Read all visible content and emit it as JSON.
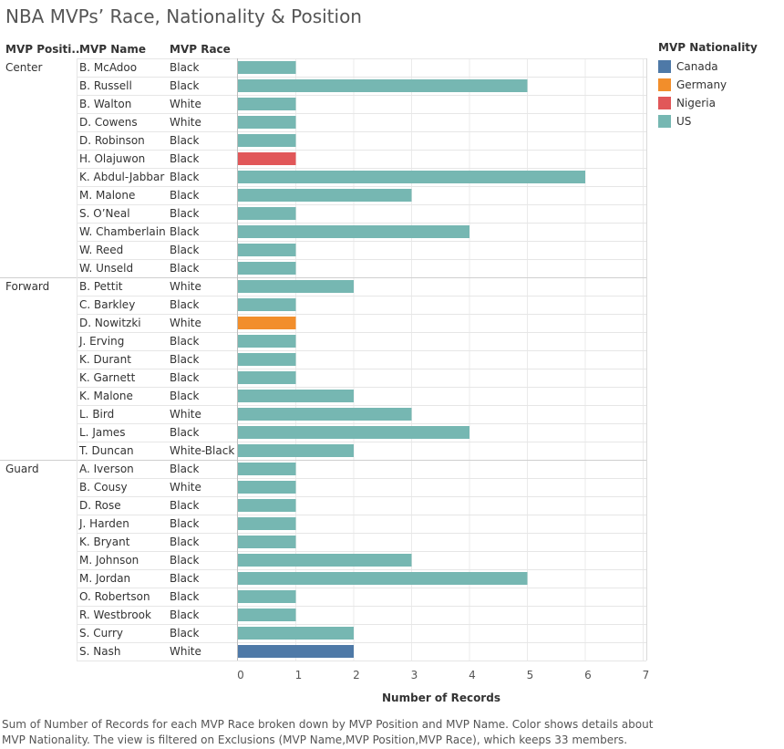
{
  "title": "NBA MVPs’ Race, Nationality & Position",
  "headers": {
    "position": "MVP Positi..",
    "name": "MVP Name",
    "race": "MVP Race"
  },
  "legend": {
    "title": "MVP Nationality",
    "items": [
      {
        "label": "Canada",
        "color": "#4e79a7"
      },
      {
        "label": "Germany",
        "color": "#f28e2b"
      },
      {
        "label": "Nigeria",
        "color": "#e15759"
      },
      {
        "label": "US",
        "color": "#76b7b2"
      }
    ]
  },
  "caption": "Sum of Number of Records for each MVP Race broken down by MVP Position and MVP Name.  Color shows details about MVP Nationality. The view is filtered on Exclusions (MVP Name,MVP Position,MVP Race), which keeps 33 members.",
  "chart_data": {
    "type": "bar",
    "orientation": "horizontal",
    "xlabel": "Number of Records",
    "xlim": [
      0,
      7
    ],
    "xticks": [
      "0",
      "1",
      "2",
      "3",
      "4",
      "5",
      "6",
      "7"
    ],
    "grid": true,
    "legend_placement": "right",
    "groups": [
      {
        "position": "Center",
        "rows": [
          {
            "name": "B. McAdoo",
            "race": "Black",
            "value": 1,
            "nationality": "US"
          },
          {
            "name": "B. Russell",
            "race": "Black",
            "value": 5,
            "nationality": "US"
          },
          {
            "name": "B. Walton",
            "race": "White",
            "value": 1,
            "nationality": "US"
          },
          {
            "name": "D. Cowens",
            "race": "White",
            "value": 1,
            "nationality": "US"
          },
          {
            "name": "D. Robinson",
            "race": "Black",
            "value": 1,
            "nationality": "US"
          },
          {
            "name": "H. Olajuwon",
            "race": "Black",
            "value": 1,
            "nationality": "Nigeria"
          },
          {
            "name": "K. Abdul-Jabbar",
            "race": "Black",
            "value": 6,
            "nationality": "US"
          },
          {
            "name": "M. Malone",
            "race": "Black",
            "value": 3,
            "nationality": "US"
          },
          {
            "name": "S. O’Neal",
            "race": "Black",
            "value": 1,
            "nationality": "US"
          },
          {
            "name": "W. Chamberlain",
            "race": "Black",
            "value": 4,
            "nationality": "US"
          },
          {
            "name": "W. Reed",
            "race": "Black",
            "value": 1,
            "nationality": "US"
          },
          {
            "name": "W. Unseld",
            "race": "Black",
            "value": 1,
            "nationality": "US"
          }
        ]
      },
      {
        "position": "Forward",
        "rows": [
          {
            "name": "B. Pettit",
            "race": "White",
            "value": 2,
            "nationality": "US"
          },
          {
            "name": "C. Barkley",
            "race": "Black",
            "value": 1,
            "nationality": "US"
          },
          {
            "name": "D. Nowitzki",
            "race": "White",
            "value": 1,
            "nationality": "Germany"
          },
          {
            "name": "J. Erving",
            "race": "Black",
            "value": 1,
            "nationality": "US"
          },
          {
            "name": "K. Durant",
            "race": "Black",
            "value": 1,
            "nationality": "US"
          },
          {
            "name": "K. Garnett",
            "race": "Black",
            "value": 1,
            "nationality": "US"
          },
          {
            "name": "K. Malone",
            "race": "Black",
            "value": 2,
            "nationality": "US"
          },
          {
            "name": "L. Bird",
            "race": "White",
            "value": 3,
            "nationality": "US"
          },
          {
            "name": "L. James",
            "race": "Black",
            "value": 4,
            "nationality": "US"
          },
          {
            "name": "T. Duncan",
            "race": "White-Black",
            "value": 2,
            "nationality": "US"
          }
        ]
      },
      {
        "position": "Guard",
        "rows": [
          {
            "name": "A. Iverson",
            "race": "Black",
            "value": 1,
            "nationality": "US"
          },
          {
            "name": "B. Cousy",
            "race": "White",
            "value": 1,
            "nationality": "US"
          },
          {
            "name": "D. Rose",
            "race": "Black",
            "value": 1,
            "nationality": "US"
          },
          {
            "name": "J. Harden",
            "race": "Black",
            "value": 1,
            "nationality": "US"
          },
          {
            "name": "K. Bryant",
            "race": "Black",
            "value": 1,
            "nationality": "US"
          },
          {
            "name": "M. Johnson",
            "race": "Black",
            "value": 3,
            "nationality": "US"
          },
          {
            "name": "M. Jordan",
            "race": "Black",
            "value": 5,
            "nationality": "US"
          },
          {
            "name": "O. Robertson",
            "race": "Black",
            "value": 1,
            "nationality": "US"
          },
          {
            "name": "R. Westbrook",
            "race": "Black",
            "value": 1,
            "nationality": "US"
          },
          {
            "name": "S. Curry",
            "race": "Black",
            "value": 2,
            "nationality": "US"
          },
          {
            "name": "S. Nash",
            "race": "White",
            "value": 2,
            "nationality": "Canada"
          }
        ]
      }
    ]
  }
}
